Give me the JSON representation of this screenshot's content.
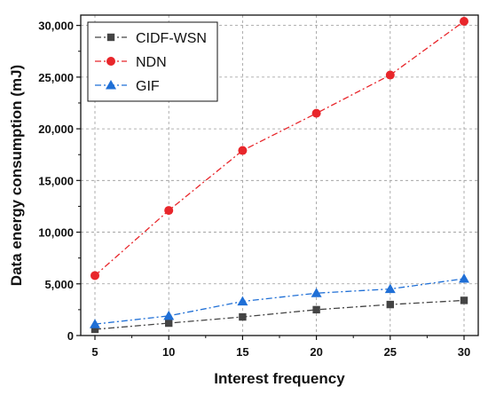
{
  "chart_data": {
    "type": "line",
    "title": "",
    "xlabel": "Interest frequency",
    "ylabel": "Data energy consumption (mJ)",
    "x": [
      5,
      10,
      15,
      20,
      25,
      30
    ],
    "x_ticks": [
      "5",
      "10",
      "15",
      "20",
      "25",
      "30"
    ],
    "y_ticks": [
      "0",
      "5,000",
      "10,000",
      "15,000",
      "20,000",
      "25,000",
      "30,000"
    ],
    "y_tick_values": [
      0,
      5000,
      10000,
      15000,
      20000,
      25000,
      30000
    ],
    "xlim": [
      5,
      30
    ],
    "ylim": [
      0,
      31000
    ],
    "grid": true,
    "legend_position": "top-left",
    "series": [
      {
        "name": "CIDF-WSN",
        "values": [
          600,
          1200,
          1800,
          2500,
          3000,
          3400
        ],
        "color": "#444444",
        "marker": "square",
        "dash": "dash-dot"
      },
      {
        "name": "NDN",
        "values": [
          5800,
          12100,
          17900,
          21500,
          25200,
          30400
        ],
        "color": "#e8262b",
        "marker": "circle",
        "dash": "dash-dot"
      },
      {
        "name": "GIF",
        "values": [
          1100,
          1900,
          3300,
          4100,
          4500,
          5500
        ],
        "color": "#1f6fd6",
        "marker": "triangle",
        "dash": "dash-dot"
      }
    ]
  }
}
